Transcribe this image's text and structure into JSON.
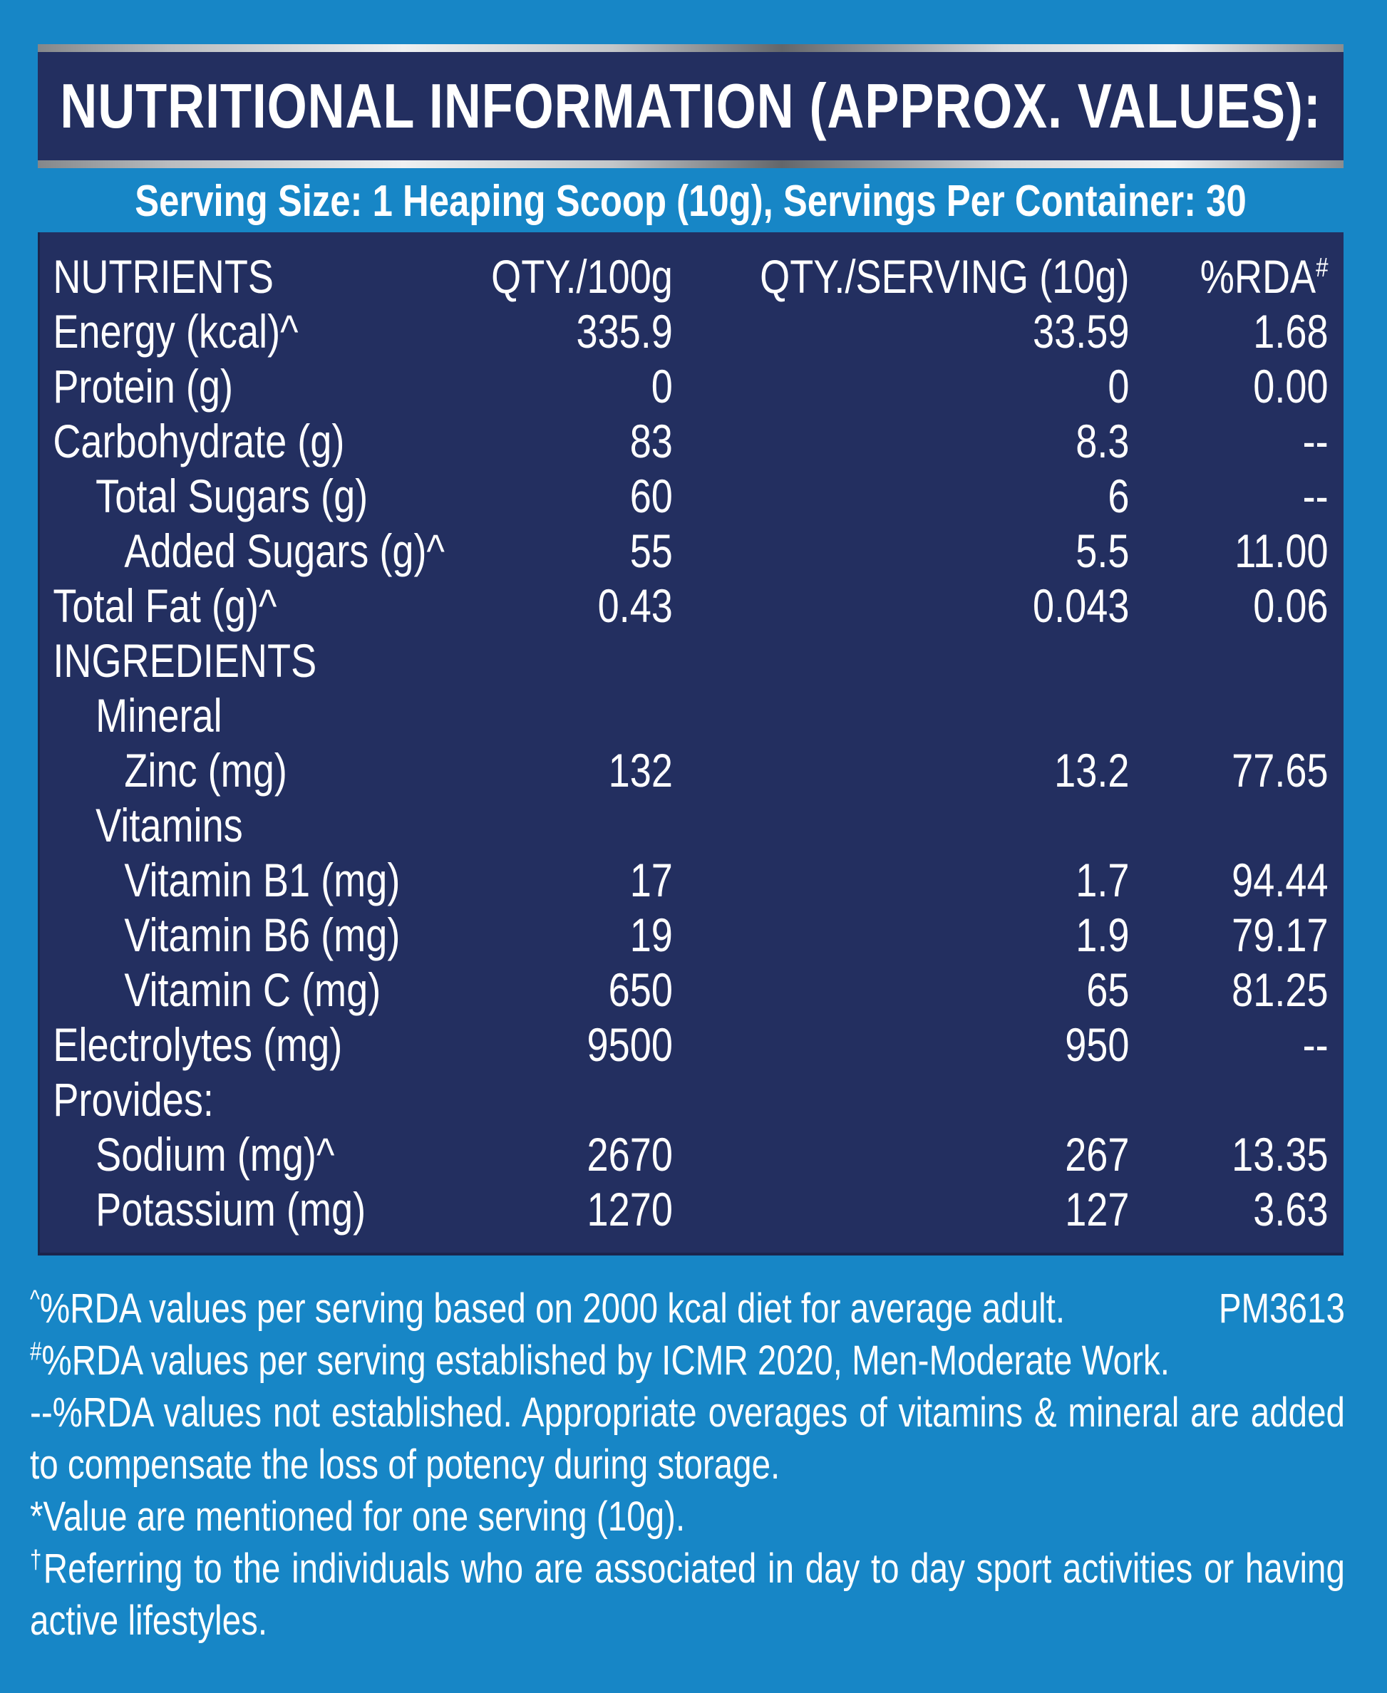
{
  "header": {
    "title": "NUTRITIONAL INFORMATION (APPROX. VALUES):"
  },
  "serving_line": "Serving Size: 1 Heaping Scoop (10g), Servings Per Container: 30",
  "table": {
    "columns": {
      "nutrients": "NUTRIENTS",
      "qty_100g": "QTY./100g",
      "qty_serving": "QTY./SERVING (10g)",
      "rda": "%RDA",
      "rda_sup": "#"
    },
    "rows": [
      {
        "label": "Energy (kcal)^",
        "qty_100g": "335.9",
        "qty_serving": "33.59",
        "rda": "1.68"
      },
      {
        "label": "Protein (g)",
        "qty_100g": "0",
        "qty_serving": "0",
        "rda": "0.00"
      },
      {
        "label": "Carbohydrate (g)",
        "qty_100g": "83",
        "qty_serving": "8.3",
        "rda": "--"
      },
      {
        "label": "Total Sugars (g)",
        "qty_100g": "60",
        "qty_serving": "6",
        "rda": "--"
      },
      {
        "label": "Added Sugars (g)^",
        "qty_100g": "55",
        "qty_serving": "5.5",
        "rda": "11.00"
      },
      {
        "label": "Total Fat (g)^",
        "qty_100g": "0.43",
        "qty_serving": "0.043",
        "rda": "0.06"
      },
      {
        "label": "INGREDIENTS"
      },
      {
        "label": "Mineral"
      },
      {
        "label": "Zinc (mg)",
        "qty_100g": "132",
        "qty_serving": "13.2",
        "rda": "77.65"
      },
      {
        "label": "Vitamins"
      },
      {
        "label": "Vitamin B1 (mg)",
        "qty_100g": "17",
        "qty_serving": "1.7",
        "rda": "94.44"
      },
      {
        "label": "Vitamin B6 (mg)",
        "qty_100g": "19",
        "qty_serving": "1.9",
        "rda": "79.17"
      },
      {
        "label": "Vitamin C (mg)",
        "qty_100g": "650",
        "qty_serving": "65",
        "rda": "81.25"
      },
      {
        "label": "Electrolytes (mg)",
        "qty_100g": "9500",
        "qty_serving": "950",
        "rda": "--"
      },
      {
        "label": "Provides:"
      },
      {
        "label": "Sodium (mg)^",
        "qty_100g": "2670",
        "qty_serving": "267",
        "rda": "13.35"
      },
      {
        "label": "Potassium (mg)",
        "qty_100g": "1270",
        "qty_serving": "127",
        "rda": "3.63"
      }
    ]
  },
  "footnotes": [
    {
      "marker": "^",
      "text": "%RDA values per serving based on 2000 kcal diet for average adult.",
      "code": "PM3613"
    },
    {
      "marker": "#",
      "text": "%RDA values per serving established by ICMR 2020, Men-Moderate Work."
    },
    {
      "marker": "--",
      "text": "%RDA values not established. Appropriate overages of vitamins & mineral are added to compensate the loss of potency during storage."
    },
    {
      "marker": "*",
      "text": "Value are mentioned for one serving (10g)."
    },
    {
      "marker": "†",
      "text": "Referring to the individuals who are associated in day to day sport activities or having active lifestyles."
    }
  ],
  "colors": {
    "bg": "#1786c6",
    "panel": "#232f60",
    "text": "#ffffff"
  }
}
